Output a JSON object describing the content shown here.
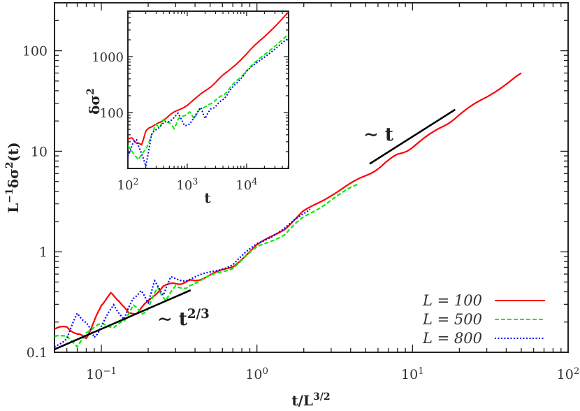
{
  "chart_data": [
    {
      "type": "line",
      "panel": "main",
      "xscale": "log",
      "yscale": "log",
      "xlim": [
        0.05,
        100
      ],
      "ylim": [
        0.1,
        300
      ],
      "xlabel_parts": [
        {
          "t": "t/L"
        },
        {
          "sup": "3/2"
        }
      ],
      "ylabel_parts": [
        {
          "t": "L"
        },
        {
          "sup": "−1"
        },
        {
          "t": "δσ"
        },
        {
          "sup": "2"
        },
        {
          "t": "(t)"
        }
      ],
      "xticks": [
        {
          "v": 0.1,
          "base": "10",
          "exp": "−1"
        },
        {
          "v": 1,
          "base": "10",
          "exp": "0"
        },
        {
          "v": 10,
          "base": "10",
          "exp": "1"
        },
        {
          "v": 100,
          "base": "10",
          "exp": "2"
        }
      ],
      "yticks": [
        {
          "v": 0.1,
          "label": "0.1"
        },
        {
          "v": 1,
          "label": "1"
        },
        {
          "v": 10,
          "label": "10"
        },
        {
          "v": 100,
          "label": "100"
        }
      ],
      "grid": false,
      "legend": "bottom-right",
      "series": [
        {
          "name": "L = 100",
          "color": "#ff0000",
          "dash": "solid",
          "x": [
            0.05,
            0.06,
            0.07,
            0.08,
            0.09,
            0.1,
            0.115,
            0.13,
            0.15,
            0.17,
            0.2,
            0.25,
            0.3,
            0.35,
            0.4,
            0.5,
            0.7,
            1,
            1.5,
            2,
            3,
            4.5,
            6,
            8,
            10,
            15,
            20,
            30,
            50
          ],
          "y": [
            0.17,
            0.18,
            0.15,
            0.14,
            0.2,
            0.3,
            0.38,
            0.33,
            0.24,
            0.25,
            0.32,
            0.46,
            0.48,
            0.5,
            0.52,
            0.58,
            0.72,
            1.15,
            1.7,
            2.5,
            3.7,
            5.2,
            6.8,
            9.2,
            11,
            17,
            23,
            35,
            60
          ]
        },
        {
          "name": "L = 500",
          "color": "#00ee00",
          "dash": "dashed",
          "x": [
            0.05,
            0.06,
            0.07,
            0.08,
            0.1,
            0.12,
            0.14,
            0.16,
            0.18,
            0.2,
            0.23,
            0.26,
            0.3,
            0.35,
            0.4,
            0.5,
            0.7,
            1,
            1.5,
            2,
            3,
            4.47
          ],
          "y": [
            0.14,
            0.15,
            0.11,
            0.16,
            0.19,
            0.18,
            0.2,
            0.3,
            0.24,
            0.27,
            0.45,
            0.32,
            0.47,
            0.42,
            0.5,
            0.57,
            0.7,
            1.1,
            1.5,
            2.2,
            3.3,
            4.7
          ]
        },
        {
          "name": "L = 800",
          "color": "#0000ff",
          "dash": "dotted",
          "x": [
            0.05,
            0.06,
            0.07,
            0.08,
            0.09,
            0.1,
            0.12,
            0.14,
            0.16,
            0.18,
            0.2,
            0.22,
            0.25,
            0.28,
            0.35,
            0.5,
            0.7,
            1,
            1.5,
            2.2
          ],
          "y": [
            0.11,
            0.14,
            0.24,
            0.2,
            0.14,
            0.18,
            0.3,
            0.21,
            0.35,
            0.4,
            0.32,
            0.5,
            0.38,
            0.55,
            0.52,
            0.62,
            0.75,
            1.2,
            1.7,
            2.65
          ]
        }
      ],
      "guides": [
        {
          "label_parts": [
            {
              "t": "∼ t"
            },
            {
              "sup": "2/3"
            }
          ],
          "x": [
            0.05,
            0.375
          ],
          "y": [
            0.107,
            0.415
          ]
        },
        {
          "label_parts": [
            {
              "t": "∼ t"
            }
          ],
          "x": [
            5.3,
            18.8
          ],
          "y": [
            7.5,
            26
          ]
        }
      ]
    },
    {
      "type": "line",
      "panel": "inset",
      "xscale": "log",
      "yscale": "log",
      "xlim": [
        100,
        51000
      ],
      "ylim": [
        10,
        6500
      ],
      "xlabel_parts": [
        {
          "t": "t"
        }
      ],
      "ylabel_parts": [
        {
          "t": "δσ"
        },
        {
          "sup": "2"
        }
      ],
      "xticks": [
        {
          "v": 100,
          "base": "10",
          "exp": "2"
        },
        {
          "v": 1000,
          "base": "10",
          "exp": "3"
        },
        {
          "v": 10000,
          "base": "10",
          "exp": "4"
        }
      ],
      "yticks": [
        {
          "v": 100,
          "label": "100"
        },
        {
          "v": 1000,
          "label": "1000"
        }
      ],
      "grid": false,
      "series": [
        {
          "color": "#ff0000",
          "dash": "solid",
          "x": [
            100,
            120,
            140,
            170,
            200,
            230,
            300,
            400,
            600,
            1000,
            2000,
            3000,
            5000,
            10000,
            20000,
            50000
          ],
          "y": [
            33,
            35,
            28,
            27,
            45,
            55,
            60,
            75,
            100,
            137,
            240,
            350,
            560,
            1120,
            2300,
            6100
          ]
        },
        {
          "color": "#00ee00",
          "dash": "dashed",
          "x": [
            100,
            120,
            150,
            180,
            200,
            250,
            300,
            350,
            400,
            500,
            600,
            700,
            900,
            1100,
            1300,
            1600,
            2000,
            2500,
            3000,
            4000,
            5000,
            7000,
            10000,
            20000,
            50000
          ],
          "y": [
            25,
            20,
            14,
            20,
            21,
            40,
            60,
            55,
            75,
            65,
            52,
            75,
            90,
            100,
            80,
            110,
            130,
            140,
            170,
            200,
            260,
            380,
            560,
            1100,
            2450
          ]
        },
        {
          "color": "#0000ff",
          "dash": "dotted",
          "x": [
            100,
            120,
            140,
            160,
            200,
            250,
            300,
            400,
            500,
            700,
            900,
            1100,
            1400,
            1700,
            2000,
            2500,
            3000,
            4000,
            5000,
            7000,
            10000,
            20000,
            50000
          ],
          "y": [
            16,
            28,
            32,
            22,
            11,
            40,
            50,
            65,
            70,
            95,
            60,
            60,
            95,
            120,
            80,
            115,
            130,
            170,
            230,
            350,
            540,
            1000,
            2100
          ]
        }
      ]
    }
  ]
}
